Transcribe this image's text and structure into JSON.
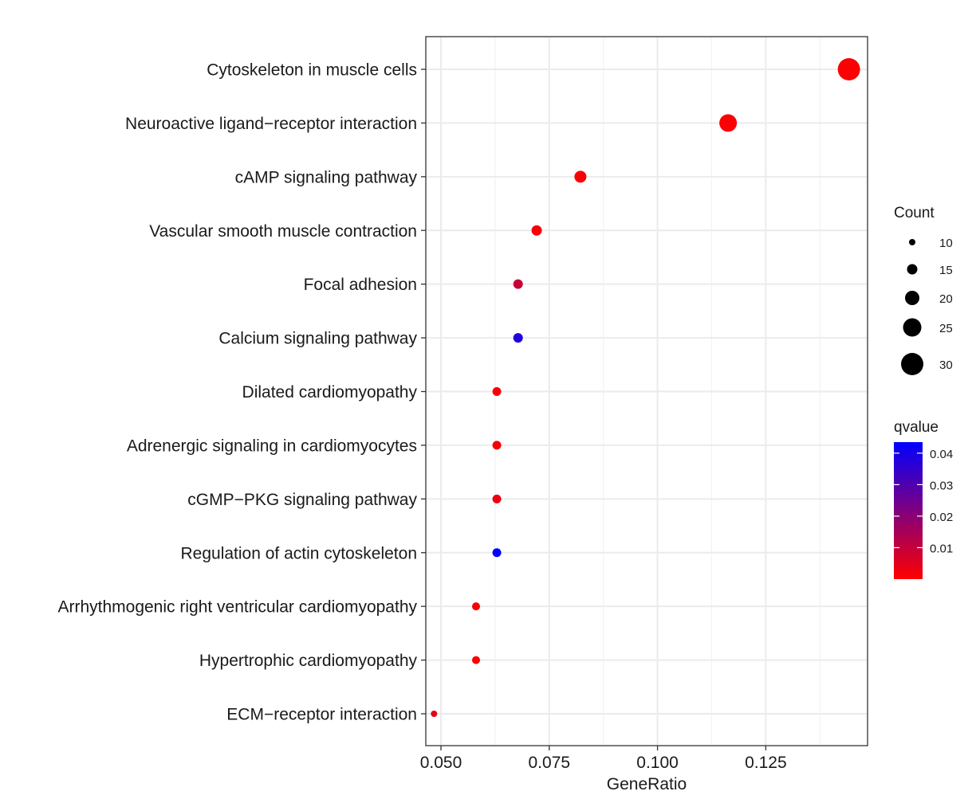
{
  "chart_data": {
    "type": "scatter",
    "title": "",
    "xlabel": "GeneRatio",
    "ylabel": "",
    "xlim": [
      0.0465,
      0.1485
    ],
    "x_ticks": [
      0.05,
      0.075,
      0.1,
      0.125
    ],
    "x_tick_labels": [
      "0.050",
      "0.075",
      "0.100",
      "0.125"
    ],
    "grid": true,
    "categories": [
      "Cytoskeleton in muscle cells",
      "Neuroactive ligand−receptor interaction",
      "cAMP signaling pathway",
      "Vascular smooth muscle contraction",
      "Focal adhesion",
      "Calcium signaling pathway",
      "Dilated cardiomyopathy",
      "Adrenergic signaling in cardiomyocytes",
      "cGMP−PKG signaling pathway",
      "Regulation of actin cytoskeleton",
      "Arrhythmogenic right ventricular cardiomyopathy",
      "Hypertrophic cardiomyopathy",
      "ECM−receptor interaction"
    ],
    "gene_ratio": [
      0.1442,
      0.1163,
      0.0822,
      0.0721,
      0.0678,
      0.0678,
      0.0629,
      0.0629,
      0.0629,
      0.0629,
      0.0581,
      0.0581,
      0.0484
    ],
    "count": [
      30,
      24,
      17,
      15,
      14,
      14,
      13,
      13,
      13,
      13,
      12,
      12,
      10
    ],
    "qvalue": [
      0.0005,
      0.0006,
      0.0008,
      0.001,
      0.0095,
      0.0378,
      0.0012,
      0.0013,
      0.003,
      0.0435,
      0.0006,
      0.0007,
      0.0048
    ],
    "size_legend": {
      "title": "Count",
      "values": [
        10,
        15,
        20,
        25,
        30
      ],
      "labels": [
        "10",
        "15",
        "20",
        "25",
        "30"
      ]
    },
    "color_legend": {
      "title": "qvalue",
      "low_color": "#ff0000",
      "high_color": "#0000ff",
      "range": [
        0,
        0.0435
      ],
      "ticks": [
        0.01,
        0.02,
        0.03,
        0.04
      ],
      "tick_labels": [
        "0.01",
        "0.02",
        "0.03",
        "0.04"
      ]
    },
    "legend_position": "right"
  }
}
